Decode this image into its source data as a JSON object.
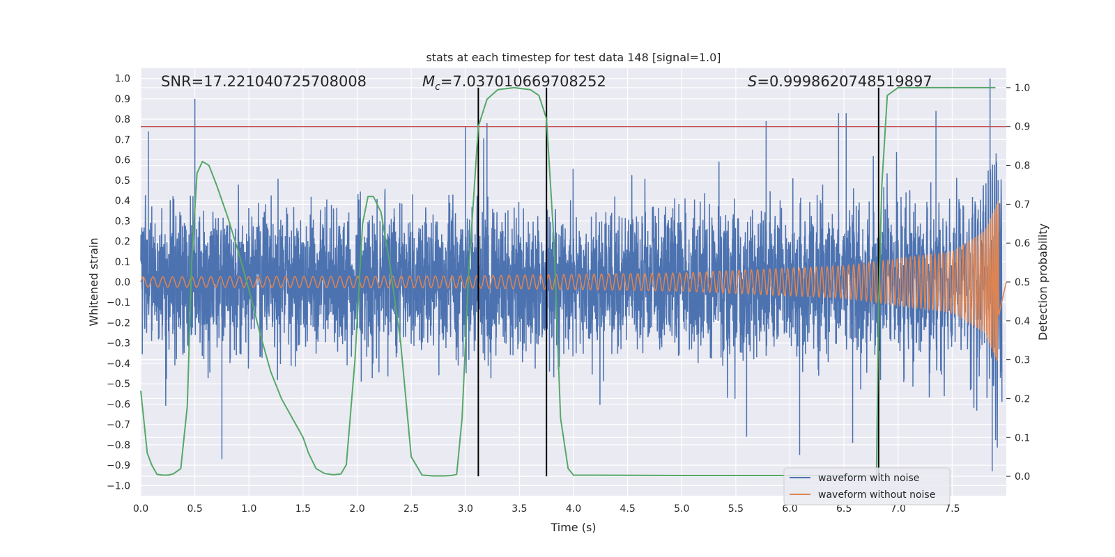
{
  "chart_data": {
    "type": "line",
    "title": "stats at each timestep for test data 148 [signal=1.0]",
    "xlabel": "Time (s)",
    "ylabel": "Whitened strain",
    "y2label": "Detection probability",
    "xlim": [
      0.0,
      8.0
    ],
    "ylim": [
      -1.05,
      1.05
    ],
    "y2lim": [
      -0.05,
      1.05
    ],
    "xticks": [
      "0.0",
      "0.5",
      "1.0",
      "1.5",
      "2.0",
      "2.5",
      "3.0",
      "3.5",
      "4.0",
      "4.5",
      "5.0",
      "5.5",
      "6.0",
      "6.5",
      "7.0",
      "7.5"
    ],
    "yticks": [
      "1.0",
      "0.9",
      "0.8",
      "0.7",
      "0.6",
      "0.5",
      "0.4",
      "0.3",
      "0.2",
      "0.1",
      "0.0",
      "−0.1",
      "−0.2",
      "−0.3",
      "−0.4",
      "−0.5",
      "−0.6",
      "−0.7",
      "−0.8",
      "−0.9",
      "−1.0"
    ],
    "y2ticks": [
      "1.0",
      "0.9",
      "0.8",
      "0.7",
      "0.6",
      "0.5",
      "0.4",
      "0.3",
      "0.2",
      "0.1",
      "0.0"
    ],
    "annotations": {
      "snr": "SNR=17.221040725708008",
      "mc_symbol": "M",
      "mc_sub": "c",
      "mc_value": "=7.037010669708252",
      "s_symbol": "S",
      "s_value": "=0.9998620748519897"
    },
    "threshold": {
      "axis": "y2",
      "value": 0.9,
      "color": "#c44e52"
    },
    "vlines": [
      {
        "x": 3.12,
        "y2_range": [
          0.0,
          1.0
        ]
      },
      {
        "x": 3.75,
        "y2_range": [
          0.0,
          1.0
        ]
      },
      {
        "x": 6.82,
        "y2_range": [
          0.0,
          1.0
        ]
      }
    ],
    "series": [
      {
        "name": "waveform with noise",
        "color": "#4c72b0",
        "axis": "y",
        "description": "noise envelope",
        "t_end": 7.96,
        "typical_amplitude": 0.45,
        "peaks": [
          {
            "x": 0.5,
            "y": 0.9
          },
          {
            "x": 0.07,
            "y": 0.74
          },
          {
            "x": 7.85,
            "y": 1.0
          },
          {
            "x": 7.87,
            "y": -0.93
          },
          {
            "x": 0.75,
            "y": -0.87
          },
          {
            "x": 6.09,
            "y": -0.85
          },
          {
            "x": 6.58,
            "y": -0.79
          },
          {
            "x": 5.6,
            "y": -0.76
          },
          {
            "x": 3.2,
            "y": 0.78
          },
          {
            "x": 6.45,
            "y": 0.83
          },
          {
            "x": 6.52,
            "y": 0.83
          },
          {
            "x": 7.35,
            "y": 0.84
          },
          {
            "x": 5.78,
            "y": 0.79
          },
          {
            "x": 3.0,
            "y": 0.76
          }
        ]
      },
      {
        "name": "waveform without noise",
        "color": "#dd8452",
        "axis": "y",
        "description": "chirp",
        "t_end": 7.93,
        "amplitude_points": [
          {
            "x": 0.0,
            "y": 0.025
          },
          {
            "x": 3.0,
            "y": 0.03
          },
          {
            "x": 5.0,
            "y": 0.045
          },
          {
            "x": 6.5,
            "y": 0.08
          },
          {
            "x": 7.5,
            "y": 0.15
          },
          {
            "x": 7.8,
            "y": 0.25
          },
          {
            "x": 7.93,
            "y": 0.41
          }
        ]
      },
      {
        "name": "Detection probability",
        "color": "#55a868",
        "axis": "y2",
        "x": [
          0.0,
          0.03,
          0.06,
          0.1,
          0.15,
          0.2,
          0.25,
          0.3,
          0.37,
          0.43,
          0.47,
          0.52,
          0.57,
          0.63,
          0.7,
          0.8,
          0.9,
          1.0,
          1.1,
          1.2,
          1.3,
          1.4,
          1.5,
          1.55,
          1.62,
          1.7,
          1.78,
          1.85,
          1.9,
          1.98,
          2.05,
          2.1,
          2.15,
          2.22,
          2.3,
          2.4,
          2.5,
          2.6,
          2.7,
          2.8,
          2.87,
          2.92,
          2.97,
          3.03,
          3.12,
          3.2,
          3.3,
          3.45,
          3.6,
          3.68,
          3.75,
          3.82,
          3.88,
          3.95,
          4.0,
          5.0,
          6.0,
          6.8,
          6.82,
          6.85,
          6.9,
          7.0,
          7.9
        ],
        "y": [
          0.22,
          0.14,
          0.06,
          0.03,
          0.005,
          0.003,
          0.003,
          0.006,
          0.02,
          0.18,
          0.55,
          0.78,
          0.81,
          0.8,
          0.75,
          0.67,
          0.58,
          0.48,
          0.37,
          0.27,
          0.2,
          0.15,
          0.1,
          0.06,
          0.02,
          0.007,
          0.004,
          0.006,
          0.03,
          0.3,
          0.65,
          0.72,
          0.72,
          0.68,
          0.55,
          0.35,
          0.05,
          0.003,
          0.001,
          0.001,
          0.002,
          0.005,
          0.15,
          0.52,
          0.9,
          0.97,
          0.995,
          1.0,
          0.995,
          0.98,
          0.92,
          0.6,
          0.15,
          0.02,
          0.003,
          0.002,
          0.002,
          0.002,
          0.45,
          0.75,
          0.98,
          1.0,
          1.0
        ]
      }
    ],
    "legend": {
      "placement": "lower-right",
      "entries": [
        {
          "label": "waveform with noise",
          "color": "#4c72b0"
        },
        {
          "label": "waveform without noise",
          "color": "#dd8452"
        }
      ]
    },
    "grid": true,
    "background": "#eaeaf2"
  }
}
